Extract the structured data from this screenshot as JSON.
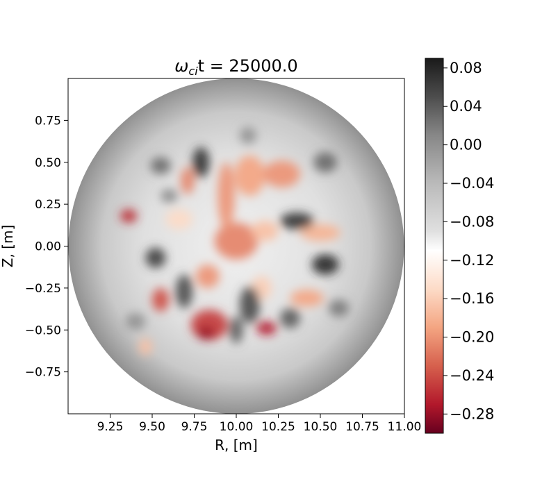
{
  "chart_data": {
    "type": "heatmap",
    "title_parts": {
      "omega": "ω",
      "subscript": "ci",
      "rest": "t = 25000.0"
    },
    "xlabel": "R, [m]",
    "ylabel": "Z, [m]",
    "xlim": [
      9.0,
      11.0
    ],
    "ylim": [
      -1.0,
      1.0
    ],
    "x_ticks": [
      "9.25",
      "9.50",
      "9.75",
      "10.00",
      "10.25",
      "10.50",
      "10.75",
      "11.00"
    ],
    "x_tick_values": [
      9.25,
      9.5,
      9.75,
      10.0,
      10.25,
      10.5,
      10.75,
      11.0
    ],
    "y_ticks": [
      "0.75",
      "0.50",
      "0.25",
      "0.00",
      "−0.25",
      "−0.50",
      "−0.75"
    ],
    "y_tick_values": [
      0.75,
      0.5,
      0.25,
      0.0,
      -0.25,
      -0.5,
      -0.75
    ],
    "domain": {
      "shape": "circle",
      "center_r": 10.0,
      "center_z": 0.0,
      "radius": 1.0
    },
    "colormap": "RdGy",
    "colorbar": {
      "range": [
        -0.3,
        0.09
      ],
      "ticks": [
        "0.08",
        "0.04",
        "0.00",
        "−0.04",
        "−0.08",
        "−0.12",
        "−0.16",
        "−0.20",
        "−0.24",
        "−0.28"
      ],
      "tick_values": [
        0.08,
        0.04,
        0.0,
        -0.04,
        -0.08,
        -0.12,
        -0.16,
        -0.2,
        -0.24,
        -0.28
      ],
      "stops": [
        {
          "value": 0.09,
          "color": "#1a1a1a"
        },
        {
          "value": 0.05,
          "color": "#4d4d4d"
        },
        {
          "value": 0.01,
          "color": "#878787"
        },
        {
          "value": -0.04,
          "color": "#bababa"
        },
        {
          "value": -0.09,
          "color": "#e0e0e0"
        },
        {
          "value": -0.11,
          "color": "#ffffff"
        },
        {
          "value": -0.15,
          "color": "#fddbc7"
        },
        {
          "value": -0.19,
          "color": "#f4a582"
        },
        {
          "value": -0.23,
          "color": "#d6604d"
        },
        {
          "value": -0.27,
          "color": "#b2182b"
        },
        {
          "value": -0.3,
          "color": "#67001f"
        }
      ]
    },
    "edge_value": 0.0,
    "features": [
      {
        "kind": "hot",
        "r": 10.0,
        "z": 0.03,
        "width": 0.13,
        "height": 0.11,
        "value": -0.21
      },
      {
        "kind": "hot",
        "r": 9.94,
        "z": 0.3,
        "width": 0.05,
        "height": 0.2,
        "value": -0.2
      },
      {
        "kind": "hot",
        "r": 10.08,
        "z": 0.42,
        "width": 0.09,
        "height": 0.12,
        "value": -0.19
      },
      {
        "kind": "hot",
        "r": 10.27,
        "z": 0.43,
        "width": 0.11,
        "height": 0.08,
        "value": -0.2
      },
      {
        "kind": "hot",
        "r": 9.71,
        "z": 0.39,
        "width": 0.04,
        "height": 0.08,
        "value": -0.21
      },
      {
        "kind": "hot",
        "r": 9.36,
        "z": 0.18,
        "width": 0.05,
        "height": 0.04,
        "value": -0.26
      },
      {
        "kind": "hot",
        "r": 9.66,
        "z": 0.16,
        "width": 0.08,
        "height": 0.06,
        "value": -0.15
      },
      {
        "kind": "hot",
        "r": 10.17,
        "z": 0.09,
        "width": 0.08,
        "height": 0.06,
        "value": -0.17
      },
      {
        "kind": "hot",
        "r": 10.5,
        "z": 0.08,
        "width": 0.12,
        "height": 0.05,
        "value": -0.18
      },
      {
        "kind": "hot",
        "r": 9.83,
        "z": -0.18,
        "width": 0.07,
        "height": 0.07,
        "value": -0.2
      },
      {
        "kind": "hot",
        "r": 10.15,
        "z": -0.25,
        "width": 0.06,
        "height": 0.07,
        "value": -0.16
      },
      {
        "kind": "hot",
        "r": 10.42,
        "z": -0.31,
        "width": 0.1,
        "height": 0.05,
        "value": -0.19
      },
      {
        "kind": "hot",
        "r": 9.84,
        "z": -0.47,
        "width": 0.11,
        "height": 0.09,
        "value": -0.25
      },
      {
        "kind": "hot",
        "r": 9.82,
        "z": -0.52,
        "width": 0.05,
        "height": 0.04,
        "value": -0.28
      },
      {
        "kind": "hot",
        "r": 10.18,
        "z": -0.49,
        "width": 0.06,
        "height": 0.04,
        "value": -0.27
      },
      {
        "kind": "hot",
        "r": 9.55,
        "z": -0.32,
        "width": 0.05,
        "height": 0.07,
        "value": -0.24
      },
      {
        "kind": "hot",
        "r": 9.46,
        "z": -0.6,
        "width": 0.04,
        "height": 0.05,
        "value": -0.17
      },
      {
        "kind": "cold",
        "r": 9.79,
        "z": 0.5,
        "width": 0.05,
        "height": 0.09,
        "value": 0.07
      },
      {
        "kind": "cold",
        "r": 9.55,
        "z": 0.48,
        "width": 0.06,
        "height": 0.05,
        "value": 0.03
      },
      {
        "kind": "cold",
        "r": 10.36,
        "z": 0.15,
        "width": 0.1,
        "height": 0.05,
        "value": 0.07
      },
      {
        "kind": "cold",
        "r": 10.53,
        "z": 0.5,
        "width": 0.07,
        "height": 0.06,
        "value": 0.03
      },
      {
        "kind": "cold",
        "r": 10.53,
        "z": -0.11,
        "width": 0.08,
        "height": 0.06,
        "value": 0.08
      },
      {
        "kind": "cold",
        "r": 9.52,
        "z": -0.07,
        "width": 0.06,
        "height": 0.06,
        "value": 0.06
      },
      {
        "kind": "cold",
        "r": 9.6,
        "z": 0.3,
        "width": 0.05,
        "height": 0.04,
        "value": 0.01
      },
      {
        "kind": "cold",
        "r": 9.69,
        "z": -0.27,
        "width": 0.05,
        "height": 0.1,
        "value": 0.05
      },
      {
        "kind": "cold",
        "r": 10.08,
        "z": -0.35,
        "width": 0.06,
        "height": 0.11,
        "value": 0.05
      },
      {
        "kind": "cold",
        "r": 10.0,
        "z": -0.5,
        "width": 0.04,
        "height": 0.08,
        "value": 0.04
      },
      {
        "kind": "cold",
        "r": 10.32,
        "z": -0.43,
        "width": 0.06,
        "height": 0.06,
        "value": 0.04
      },
      {
        "kind": "cold",
        "r": 10.61,
        "z": -0.37,
        "width": 0.06,
        "height": 0.05,
        "value": 0.02
      },
      {
        "kind": "cold",
        "r": 9.4,
        "z": -0.45,
        "width": 0.06,
        "height": 0.05,
        "value": 0.0
      },
      {
        "kind": "cold",
        "r": 10.07,
        "z": 0.66,
        "width": 0.05,
        "height": 0.05,
        "value": 0.0
      }
    ]
  }
}
